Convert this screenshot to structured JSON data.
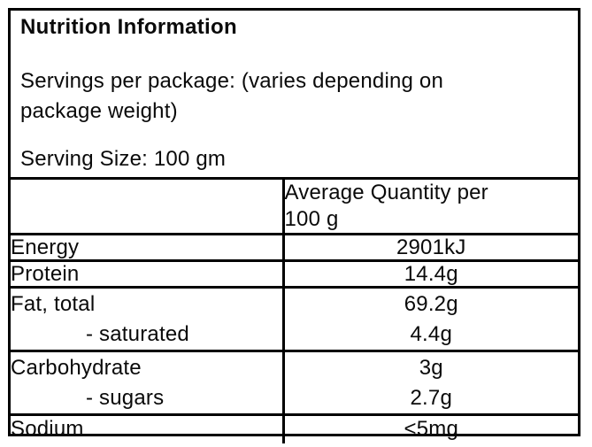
{
  "label": {
    "title": "Nutrition Information",
    "servings_line1": "Servings per package: (varies depending on",
    "servings_line2": "package weight)",
    "serving_size": "Serving Size: 100 gm",
    "table": {
      "value_header_line1": "Average Quantity per",
      "value_header_line2": "100 g",
      "rows": [
        {
          "name": "Energy",
          "value": "2901kJ"
        },
        {
          "name": "Protein",
          "value": "14.4g"
        },
        {
          "name": "Fat, total",
          "value": "69.2g",
          "sub_name": "- saturated",
          "sub_value": "4.4g"
        },
        {
          "name": "Carbohydrate",
          "value": "3g",
          "sub_name": "- sugars",
          "sub_value": "2.7g"
        },
        {
          "name": "Sodium",
          "value": "<5mg"
        }
      ]
    },
    "colors": {
      "border": "#000000",
      "text": "#0a0a0a",
      "background": "#ffffff"
    }
  }
}
